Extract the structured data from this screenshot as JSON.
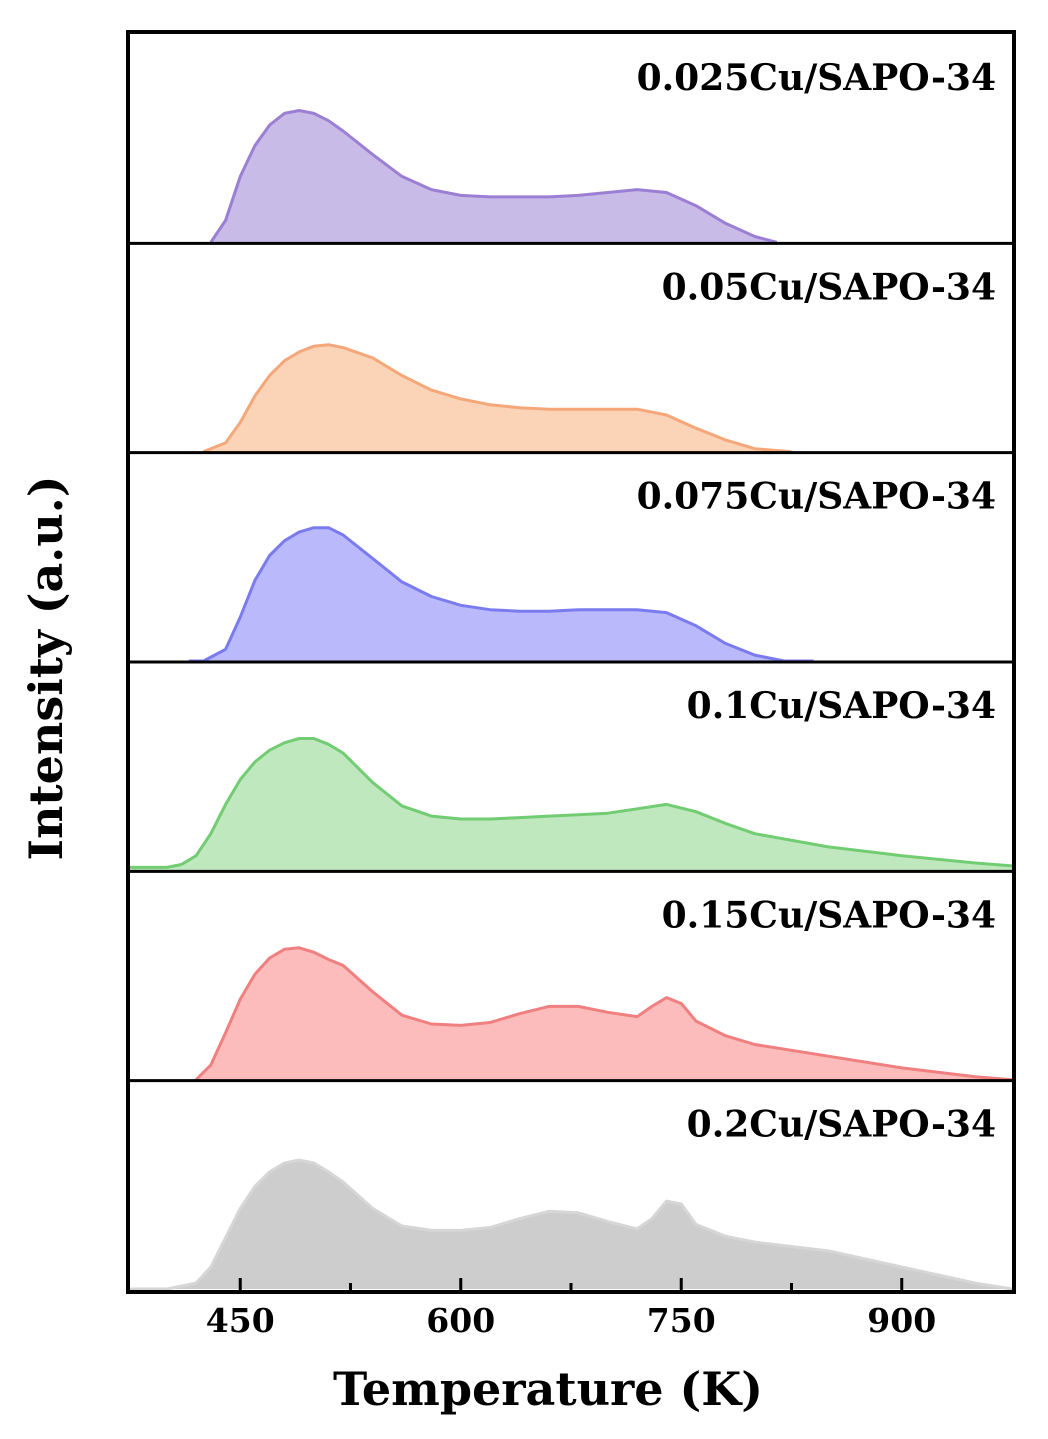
{
  "chart_data": {
    "type": "area",
    "title": "",
    "xlabel": "Temperature (K)",
    "ylabel": "Intensity (a.u.)",
    "xlim": [
      375,
      975
    ],
    "xticks": [
      450,
      600,
      750,
      900
    ],
    "minor_xticks": [
      525,
      675,
      825
    ],
    "ylim": [
      0,
      1
    ],
    "grid": false,
    "legend": "none",
    "series": [
      {
        "name": "0.025Cu/SAPO-34",
        "color": "#9b7fd4",
        "fill": "#c9bbe7",
        "x": [
          430,
          440,
          450,
          460,
          470,
          480,
          490,
          500,
          510,
          520,
          540,
          560,
          580,
          600,
          620,
          640,
          660,
          680,
          700,
          720,
          740,
          760,
          780,
          800,
          815
        ],
        "values": [
          0.0,
          0.15,
          0.45,
          0.66,
          0.8,
          0.88,
          0.9,
          0.88,
          0.83,
          0.76,
          0.6,
          0.45,
          0.36,
          0.32,
          0.31,
          0.31,
          0.31,
          0.32,
          0.34,
          0.36,
          0.34,
          0.25,
          0.13,
          0.04,
          0.0
        ]
      },
      {
        "name": "0.05Cu/SAPO-34",
        "color": "#f4a87a",
        "fill": "#fbd3b7",
        "x": [
          425,
          440,
          450,
          460,
          470,
          480,
          490,
          500,
          510,
          520,
          540,
          560,
          580,
          600,
          620,
          640,
          660,
          680,
          700,
          720,
          740,
          760,
          780,
          800,
          825
        ],
        "values": [
          0.0,
          0.06,
          0.2,
          0.38,
          0.52,
          0.62,
          0.68,
          0.72,
          0.73,
          0.71,
          0.64,
          0.52,
          0.42,
          0.36,
          0.32,
          0.3,
          0.29,
          0.29,
          0.29,
          0.29,
          0.25,
          0.16,
          0.08,
          0.02,
          0.0
        ]
      },
      {
        "name": "0.075Cu/SAPO-34",
        "color": "#7b7bf0",
        "fill": "#b9b9fb",
        "x": [
          415,
          425,
          440,
          450,
          460,
          470,
          480,
          490,
          500,
          510,
          520,
          540,
          560,
          580,
          600,
          620,
          640,
          660,
          680,
          700,
          720,
          740,
          760,
          780,
          800,
          820,
          840
        ],
        "values": [
          0.0,
          0.0,
          0.08,
          0.3,
          0.55,
          0.72,
          0.82,
          0.88,
          0.91,
          0.91,
          0.86,
          0.7,
          0.54,
          0.44,
          0.38,
          0.35,
          0.34,
          0.34,
          0.35,
          0.35,
          0.35,
          0.33,
          0.24,
          0.12,
          0.04,
          0.0,
          0.0
        ]
      },
      {
        "name": "0.1Cu/SAPO-34",
        "color": "#72cc72",
        "fill": "#bfe8bf",
        "x": [
          375,
          400,
          410,
          420,
          430,
          440,
          450,
          460,
          470,
          480,
          490,
          500,
          510,
          520,
          540,
          560,
          580,
          600,
          620,
          640,
          660,
          680,
          700,
          720,
          740,
          760,
          780,
          800,
          850,
          900,
          950,
          975
        ],
        "values": [
          0.02,
          0.02,
          0.04,
          0.1,
          0.25,
          0.45,
          0.62,
          0.74,
          0.82,
          0.87,
          0.9,
          0.9,
          0.86,
          0.8,
          0.6,
          0.44,
          0.37,
          0.35,
          0.35,
          0.36,
          0.37,
          0.38,
          0.39,
          0.42,
          0.45,
          0.4,
          0.32,
          0.25,
          0.16,
          0.1,
          0.05,
          0.03
        ]
      },
      {
        "name": "0.15Cu/SAPO-34",
        "color": "#f07f7f",
        "fill": "#fcbcbc",
        "x": [
          420,
          430,
          440,
          450,
          460,
          470,
          480,
          490,
          500,
          510,
          520,
          540,
          560,
          580,
          600,
          620,
          640,
          660,
          680,
          700,
          720,
          730,
          740,
          750,
          760,
          780,
          800,
          850,
          900,
          950,
          975
        ],
        "values": [
          0.0,
          0.1,
          0.32,
          0.55,
          0.72,
          0.83,
          0.89,
          0.9,
          0.87,
          0.82,
          0.78,
          0.6,
          0.44,
          0.38,
          0.37,
          0.39,
          0.45,
          0.5,
          0.5,
          0.46,
          0.43,
          0.5,
          0.56,
          0.52,
          0.4,
          0.3,
          0.24,
          0.16,
          0.08,
          0.02,
          0.0
        ]
      },
      {
        "name": "0.2Cu/SAPO-34",
        "color": "#d6d6d6",
        "fill": "#cdcdcd",
        "x": [
          375,
          400,
          420,
          430,
          440,
          450,
          460,
          470,
          480,
          490,
          500,
          510,
          520,
          540,
          560,
          580,
          600,
          620,
          640,
          660,
          680,
          700,
          720,
          730,
          740,
          750,
          760,
          780,
          800,
          850,
          900,
          950,
          975
        ],
        "values": [
          0.0,
          0.0,
          0.04,
          0.15,
          0.35,
          0.55,
          0.7,
          0.8,
          0.86,
          0.88,
          0.86,
          0.8,
          0.73,
          0.55,
          0.43,
          0.4,
          0.4,
          0.42,
          0.48,
          0.53,
          0.52,
          0.46,
          0.41,
          0.48,
          0.6,
          0.58,
          0.44,
          0.36,
          0.32,
          0.26,
          0.15,
          0.04,
          0.0
        ]
      }
    ]
  }
}
